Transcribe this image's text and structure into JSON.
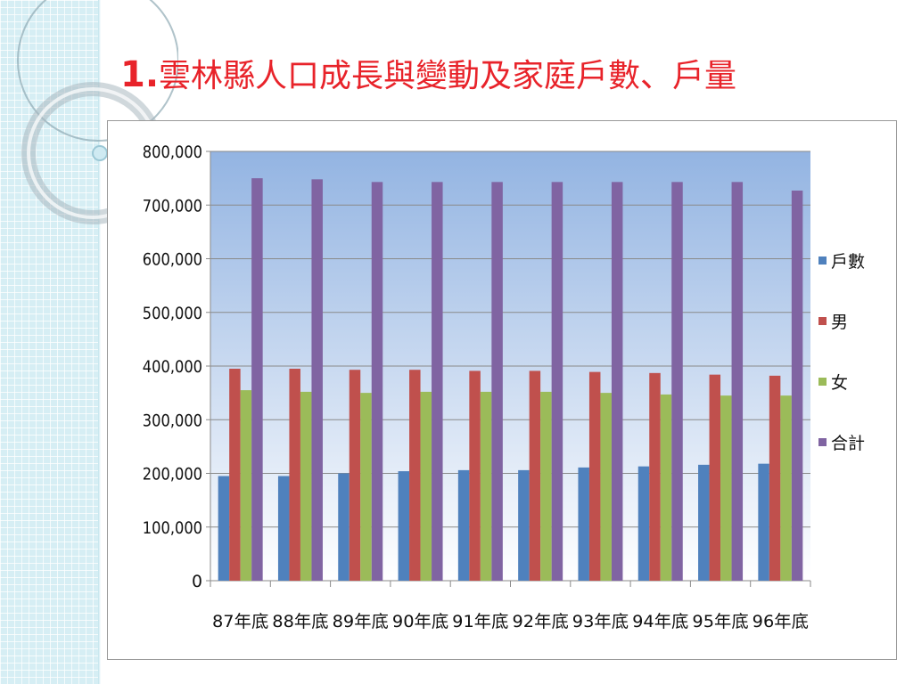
{
  "slide": {
    "title_number": "1.",
    "title_text": "雲林縣人口成長與變動及家庭戶數、戶量"
  },
  "colors": {
    "title": "#e8232a",
    "plot_top": "#93b4e2",
    "plot_bottom": "#ffffff",
    "series": [
      "#4f81bd",
      "#c0504d",
      "#9bbb59",
      "#8064a2"
    ]
  },
  "chart_data": {
    "type": "bar",
    "title": "",
    "xlabel": "",
    "ylabel": "",
    "categories": [
      "87年底",
      "88年底",
      "89年底",
      "90年底",
      "91年底",
      "92年底",
      "93年底",
      "94年底",
      "95年底",
      "96年底"
    ],
    "series": [
      {
        "name": "戶數",
        "values": [
          195000,
          195000,
          200000,
          204000,
          206000,
          206000,
          211000,
          213000,
          216000,
          218000
        ]
      },
      {
        "name": "男",
        "values": [
          395000,
          395000,
          393000,
          393000,
          391000,
          391000,
          389000,
          387000,
          384000,
          382000
        ]
      },
      {
        "name": "女",
        "values": [
          355000,
          352000,
          350000,
          352000,
          352000,
          352000,
          350000,
          347000,
          345000,
          345000
        ]
      },
      {
        "name": "合計",
        "values": [
          750000,
          748000,
          743000,
          743000,
          743000,
          743000,
          743000,
          743000,
          743000,
          727000
        ]
      }
    ],
    "ylim": [
      0,
      800000
    ],
    "yticks": [
      "0",
      "100,000",
      "200,000",
      "300,000",
      "400,000",
      "500,000",
      "600,000",
      "700,000",
      "800,000"
    ],
    "grid": true,
    "legend_position": "right"
  }
}
